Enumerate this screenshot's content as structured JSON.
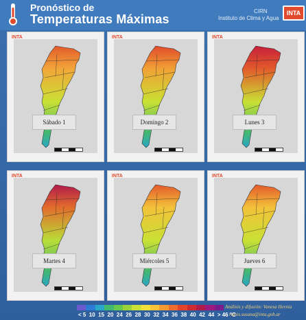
{
  "header": {
    "title_line1": "Pronóstico de",
    "title_line2": "Temperaturas Máximas",
    "crn_label": "CIRN",
    "institute_label": "Instituto de Clima y Agua",
    "logo_text": "INTA"
  },
  "panels": [
    {
      "day": "Sábado 1"
    },
    {
      "day": "Domingo 2"
    },
    {
      "day": "Lunes 3"
    },
    {
      "day": "Martes 4"
    },
    {
      "day": "Miércoles 5"
    },
    {
      "day": "Jueves 6"
    }
  ],
  "legend": {
    "ticks": [
      "< 5",
      "10",
      "15",
      "20",
      "24",
      "26",
      "28",
      "30",
      "32",
      "34",
      "36",
      "38",
      "40",
      "42",
      "44",
      "> 46 °C"
    ],
    "colors": [
      "#6a5acd",
      "#2c7bd6",
      "#2aa6c7",
      "#43b86f",
      "#66c94b",
      "#9ad43a",
      "#c9e034",
      "#f2e13a",
      "#f6c33a",
      "#f39a33",
      "#ee6d2c",
      "#e2452b",
      "#cf2a2f",
      "#b11b4a",
      "#9c1b7f",
      "#7a1c8d"
    ]
  },
  "credits": {
    "line1": "Análisis y difusión: Vanesa Hernia",
    "line2": "ramis.susana@inta.gob.ar"
  }
}
